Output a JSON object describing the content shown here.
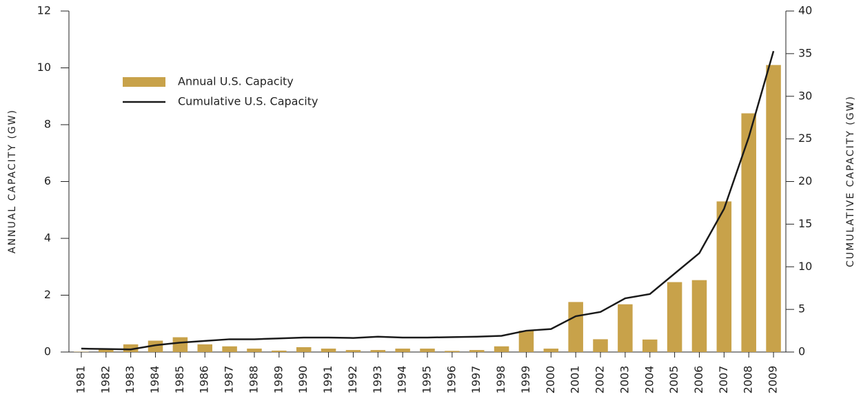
{
  "chart_data": {
    "type": "bar-line",
    "y_label": "ANNUAL CAPACITY (GW)",
    "y2_label": "CUMULATIVE CAPACITY (GW)",
    "categories": [
      "1981",
      "1982",
      "1983",
      "1984",
      "1985",
      "1986",
      "1987",
      "1988",
      "1989",
      "1990",
      "1991",
      "1992",
      "1993",
      "1994",
      "1995",
      "1996",
      "1997",
      "1998",
      "1999",
      "2000",
      "2001",
      "2002",
      "2003",
      "2004",
      "2005",
      "2006",
      "2007",
      "2008",
      "2009"
    ],
    "series": [
      {
        "name": "Annual U.S. Capacity",
        "color": "#c8a24a",
        "kind": "bar",
        "values": [
          0.01,
          0.1,
          0.27,
          0.4,
          0.52,
          0.27,
          0.2,
          0.12,
          0.05,
          0.17,
          0.12,
          0.07,
          0.07,
          0.12,
          0.12,
          0.04,
          0.07,
          0.2,
          0.75,
          0.12,
          1.76,
          0.45,
          1.68,
          0.44,
          2.46,
          2.53,
          5.3,
          8.4,
          10.1
        ]
      },
      {
        "name": "Cumulative U.S. Capacity",
        "color": "#1a1a1a",
        "kind": "line",
        "axis": "y2",
        "values": [
          0.4,
          0.35,
          0.3,
          0.8,
          1.1,
          1.3,
          1.5,
          1.5,
          1.6,
          1.7,
          1.7,
          1.65,
          1.8,
          1.7,
          1.7,
          1.75,
          1.8,
          1.9,
          2.5,
          2.7,
          4.2,
          4.7,
          6.3,
          6.8,
          9.2,
          11.6,
          16.8,
          25.2,
          35.3
        ]
      }
    ],
    "ylim": [
      0,
      12
    ],
    "yticks": [
      0,
      2,
      4,
      6,
      8,
      10,
      12
    ],
    "y2lim": [
      0,
      40
    ],
    "y2ticks": [
      0,
      5,
      10,
      15,
      20,
      25,
      30,
      35,
      40
    ]
  }
}
